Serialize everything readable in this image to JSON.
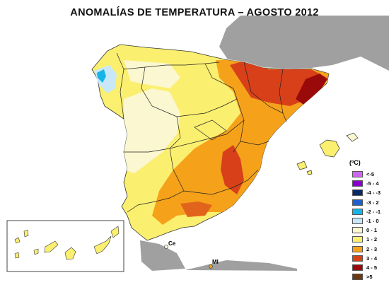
{
  "title": "ANOMALÍAS DE TEMPERATURA – AGOSTO 2012",
  "legend": {
    "unit": "(ºC)",
    "items": [
      {
        "label": "<-5",
        "color": "#cc66ee"
      },
      {
        "label": "-5 - 4",
        "color": "#8800cc"
      },
      {
        "label": "-4 - -3",
        "color": "#0a2a66"
      },
      {
        "label": "-3 - 2",
        "color": "#1d5fd0"
      },
      {
        "label": "-2 - -1",
        "color": "#15b5e8"
      },
      {
        "label": "-1 - 0",
        "color": "#c8e8f8"
      },
      {
        "label": "0 - 1",
        "color": "#fbf7d0"
      },
      {
        "label": "1 - 2",
        "color": "#fbef70"
      },
      {
        "label": "2 - 3",
        "color": "#f5a21a"
      },
      {
        "label": "3 - 4",
        "color": "#d8401a"
      },
      {
        "label": "4 - 5",
        "color": "#9a0a0a"
      },
      {
        "label": ">5",
        "color": "#6b3a12"
      }
    ]
  },
  "places": {
    "ceuta": "Ce",
    "melilla": "Ml"
  }
}
